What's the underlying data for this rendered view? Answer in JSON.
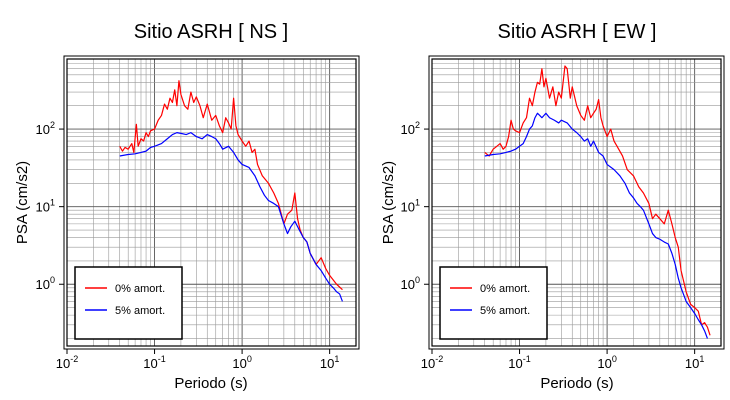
{
  "chart_data": [
    {
      "type": "line",
      "title": "Sitio ASRH [ NS ]",
      "xlabel": "Periodo (s)",
      "ylabel": "PSA (cm/s2)",
      "xscale": "log",
      "yscale": "log",
      "xlim": [
        0.01,
        20
      ],
      "ylim": [
        0.16,
        800
      ],
      "grid": true,
      "legend": "bottom-left",
      "x_ticks": [
        {
          "value": 0.01,
          "base": "10",
          "exp": "-2"
        },
        {
          "value": 0.1,
          "base": "10",
          "exp": "-1"
        },
        {
          "value": 1,
          "base": "10",
          "exp": "0"
        },
        {
          "value": 10,
          "base": "10",
          "exp": "1"
        }
      ],
      "y_ticks": [
        {
          "value": 1,
          "base": "10",
          "exp": "0"
        },
        {
          "value": 10,
          "base": "10",
          "exp": "1"
        },
        {
          "value": 100,
          "base": "10",
          "exp": "2"
        }
      ],
      "series": [
        {
          "name": "0% amort.",
          "color": "#ff0000",
          "points": [
            [
              0.04,
              60
            ],
            [
              0.043,
              52
            ],
            [
              0.046,
              58
            ],
            [
              0.05,
              55
            ],
            [
              0.055,
              65
            ],
            [
              0.058,
              50
            ],
            [
              0.062,
              115
            ],
            [
              0.065,
              60
            ],
            [
              0.07,
              75
            ],
            [
              0.075,
              70
            ],
            [
              0.08,
              90
            ],
            [
              0.085,
              80
            ],
            [
              0.09,
              95
            ],
            [
              0.1,
              100
            ],
            [
              0.11,
              130
            ],
            [
              0.12,
              150
            ],
            [
              0.13,
              210
            ],
            [
              0.14,
              180
            ],
            [
              0.15,
              250
            ],
            [
              0.16,
              220
            ],
            [
              0.17,
              320
            ],
            [
              0.18,
              200
            ],
            [
              0.19,
              420
            ],
            [
              0.2,
              280
            ],
            [
              0.22,
              200
            ],
            [
              0.24,
              180
            ],
            [
              0.26,
              300
            ],
            [
              0.28,
              220
            ],
            [
              0.3,
              260
            ],
            [
              0.33,
              200
            ],
            [
              0.36,
              140
            ],
            [
              0.4,
              210
            ],
            [
              0.45,
              130
            ],
            [
              0.5,
              150
            ],
            [
              0.55,
              110
            ],
            [
              0.6,
              90
            ],
            [
              0.65,
              140
            ],
            [
              0.7,
              120
            ],
            [
              0.75,
              100
            ],
            [
              0.8,
              250
            ],
            [
              0.85,
              110
            ],
            [
              0.9,
              85
            ],
            [
              1.0,
              70
            ],
            [
              1.1,
              60
            ],
            [
              1.2,
              70
            ],
            [
              1.3,
              50
            ],
            [
              1.4,
              55
            ],
            [
              1.5,
              35
            ],
            [
              1.7,
              25
            ],
            [
              2.0,
              20
            ],
            [
              2.3,
              15
            ],
            [
              2.6,
              11
            ],
            [
              3.0,
              6
            ],
            [
              3.3,
              8
            ],
            [
              3.7,
              9
            ],
            [
              4.0,
              15
            ],
            [
              4.3,
              7
            ],
            [
              4.6,
              5
            ],
            [
              5.0,
              4
            ],
            [
              5.5,
              3.5
            ],
            [
              6.0,
              2.5
            ],
            [
              7.0,
              1.8
            ],
            [
              8.0,
              2.2
            ],
            [
              9.0,
              1.6
            ],
            [
              10.0,
              1.3
            ],
            [
              12.0,
              1.0
            ],
            [
              14.0,
              0.85
            ]
          ]
        },
        {
          "name": "5% amort.",
          "color": "#0000ff",
          "points": [
            [
              0.04,
              45
            ],
            [
              0.05,
              47
            ],
            [
              0.06,
              48
            ],
            [
              0.07,
              50
            ],
            [
              0.08,
              52
            ],
            [
              0.09,
              58
            ],
            [
              0.1,
              60
            ],
            [
              0.12,
              65
            ],
            [
              0.14,
              75
            ],
            [
              0.16,
              85
            ],
            [
              0.18,
              90
            ],
            [
              0.2,
              88
            ],
            [
              0.23,
              85
            ],
            [
              0.26,
              90
            ],
            [
              0.3,
              80
            ],
            [
              0.35,
              75
            ],
            [
              0.4,
              85
            ],
            [
              0.45,
              80
            ],
            [
              0.5,
              75
            ],
            [
              0.55,
              65
            ],
            [
              0.6,
              55
            ],
            [
              0.7,
              60
            ],
            [
              0.8,
              50
            ],
            [
              0.9,
              40
            ],
            [
              1.0,
              35
            ],
            [
              1.2,
              32
            ],
            [
              1.4,
              25
            ],
            [
              1.6,
              18
            ],
            [
              1.8,
              14
            ],
            [
              2.0,
              12
            ],
            [
              2.3,
              11
            ],
            [
              2.6,
              10
            ],
            [
              3.0,
              6
            ],
            [
              3.3,
              4.5
            ],
            [
              3.6,
              5.5
            ],
            [
              4.0,
              6.5
            ],
            [
              4.5,
              5
            ],
            [
              5.0,
              4
            ],
            [
              5.5,
              3.5
            ],
            [
              6.0,
              2.5
            ],
            [
              7.0,
              1.8
            ],
            [
              8.0,
              1.5
            ],
            [
              9.0,
              1.2
            ],
            [
              10.0,
              1.0
            ],
            [
              11.0,
              0.9
            ],
            [
              12.0,
              0.8
            ],
            [
              13.0,
              0.75
            ],
            [
              14.0,
              0.6
            ]
          ]
        }
      ]
    },
    {
      "type": "line",
      "title": "Sitio ASRH [ EW ]",
      "xlabel": "Periodo (s)",
      "ylabel": "PSA (cm/s2)",
      "xscale": "log",
      "yscale": "log",
      "xlim": [
        0.01,
        20
      ],
      "ylim": [
        0.16,
        800
      ],
      "grid": true,
      "legend": "bottom-left",
      "x_ticks": [
        {
          "value": 0.01,
          "base": "10",
          "exp": "-2"
        },
        {
          "value": 0.1,
          "base": "10",
          "exp": "-1"
        },
        {
          "value": 1,
          "base": "10",
          "exp": "0"
        },
        {
          "value": 10,
          "base": "10",
          "exp": "1"
        }
      ],
      "y_ticks": [
        {
          "value": 1,
          "base": "10",
          "exp": "0"
        },
        {
          "value": 10,
          "base": "10",
          "exp": "1"
        },
        {
          "value": 100,
          "base": "10",
          "exp": "2"
        }
      ],
      "series": [
        {
          "name": "0% amort.",
          "color": "#ff0000",
          "points": [
            [
              0.04,
              50
            ],
            [
              0.045,
              45
            ],
            [
              0.05,
              55
            ],
            [
              0.055,
              60
            ],
            [
              0.06,
              65
            ],
            [
              0.065,
              55
            ],
            [
              0.07,
              60
            ],
            [
              0.075,
              80
            ],
            [
              0.08,
              130
            ],
            [
              0.085,
              100
            ],
            [
              0.09,
              95
            ],
            [
              0.1,
              90
            ],
            [
              0.11,
              120
            ],
            [
              0.12,
              140
            ],
            [
              0.13,
              250
            ],
            [
              0.14,
              200
            ],
            [
              0.15,
              300
            ],
            [
              0.16,
              400
            ],
            [
              0.17,
              380
            ],
            [
              0.18,
              600
            ],
            [
              0.19,
              350
            ],
            [
              0.2,
              450
            ],
            [
              0.22,
              250
            ],
            [
              0.24,
              350
            ],
            [
              0.26,
              200
            ],
            [
              0.28,
              300
            ],
            [
              0.3,
              250
            ],
            [
              0.33,
              650
            ],
            [
              0.35,
              600
            ],
            [
              0.38,
              250
            ],
            [
              0.4,
              350
            ],
            [
              0.45,
              200
            ],
            [
              0.5,
              150
            ],
            [
              0.55,
              130
            ],
            [
              0.6,
              200
            ],
            [
              0.65,
              140
            ],
            [
              0.7,
              160
            ],
            [
              0.75,
              180
            ],
            [
              0.8,
              240
            ],
            [
              0.85,
              140
            ],
            [
              0.9,
              110
            ],
            [
              1.0,
              80
            ],
            [
              1.1,
              100
            ],
            [
              1.2,
              70
            ],
            [
              1.3,
              60
            ],
            [
              1.5,
              45
            ],
            [
              1.7,
              30
            ],
            [
              2.0,
              25
            ],
            [
              2.3,
              18
            ],
            [
              2.6,
              15
            ],
            [
              3.0,
              11
            ],
            [
              3.3,
              7
            ],
            [
              3.6,
              8
            ],
            [
              4.0,
              7
            ],
            [
              4.5,
              6
            ],
            [
              5.0,
              9
            ],
            [
              5.5,
              6
            ],
            [
              6.0,
              4
            ],
            [
              6.5,
              3
            ],
            [
              7.0,
              1.5
            ],
            [
              8.0,
              0.8
            ],
            [
              9.0,
              0.55
            ],
            [
              10.0,
              0.5
            ],
            [
              11.0,
              0.45
            ],
            [
              12.0,
              0.3
            ],
            [
              13.0,
              0.32
            ],
            [
              14.0,
              0.28
            ],
            [
              15.0,
              0.22
            ]
          ]
        },
        {
          "name": "5% amort.",
          "color": "#0000ff",
          "points": [
            [
              0.04,
              45
            ],
            [
              0.05,
              47
            ],
            [
              0.06,
              48
            ],
            [
              0.07,
              50
            ],
            [
              0.08,
              52
            ],
            [
              0.09,
              55
            ],
            [
              0.1,
              60
            ],
            [
              0.11,
              65
            ],
            [
              0.12,
              80
            ],
            [
              0.13,
              100
            ],
            [
              0.14,
              110
            ],
            [
              0.15,
              140
            ],
            [
              0.16,
              160
            ],
            [
              0.17,
              150
            ],
            [
              0.18,
              140
            ],
            [
              0.2,
              160
            ],
            [
              0.22,
              140
            ],
            [
              0.25,
              130
            ],
            [
              0.28,
              120
            ],
            [
              0.3,
              130
            ],
            [
              0.35,
              120
            ],
            [
              0.4,
              100
            ],
            [
              0.45,
              90
            ],
            [
              0.5,
              80
            ],
            [
              0.55,
              70
            ],
            [
              0.6,
              75
            ],
            [
              0.65,
              60
            ],
            [
              0.7,
              70
            ],
            [
              0.8,
              50
            ],
            [
              0.9,
              45
            ],
            [
              1.0,
              35
            ],
            [
              1.2,
              30
            ],
            [
              1.4,
              25
            ],
            [
              1.6,
              20
            ],
            [
              1.8,
              15
            ],
            [
              2.0,
              13
            ],
            [
              2.2,
              11
            ],
            [
              2.4,
              10
            ],
            [
              2.6,
              9
            ],
            [
              3.0,
              6
            ],
            [
              3.3,
              4.5
            ],
            [
              3.6,
              4
            ],
            [
              4.0,
              3.8
            ],
            [
              4.5,
              3.5
            ],
            [
              5.0,
              3.3
            ],
            [
              5.5,
              2.5
            ],
            [
              6.0,
              1.8
            ],
            [
              6.5,
              1.2
            ],
            [
              7.0,
              0.9
            ],
            [
              8.0,
              0.6
            ],
            [
              9.0,
              0.5
            ],
            [
              10.0,
              0.42
            ],
            [
              11.0,
              0.35
            ],
            [
              12.0,
              0.3
            ],
            [
              13.0,
              0.25
            ],
            [
              14.0,
              0.2
            ]
          ]
        }
      ]
    }
  ]
}
